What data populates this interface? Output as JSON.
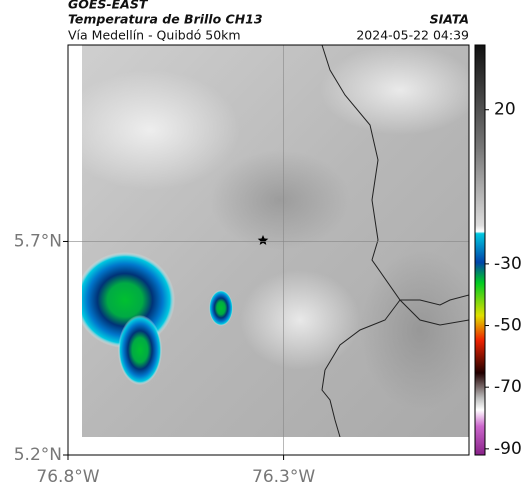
{
  "header": {
    "satellite": "GOES-EAST",
    "product": "Temperatura de Brillo CH13",
    "source": "SIATA",
    "region": "Vía Medellín - Quibdó 50km",
    "datetime": "2024-05-22 04:39"
  },
  "map": {
    "xlim": [
      -76.8,
      -75.87
    ],
    "ylim": [
      5.2,
      6.16
    ],
    "xticks": [
      {
        "value": -76.8,
        "label": "76.8°W"
      },
      {
        "value": -76.3,
        "label": "76.3°W"
      }
    ],
    "yticks": [
      {
        "value": 5.2,
        "label": "5.2°N"
      },
      {
        "value": 5.7,
        "label": "5.7°N"
      }
    ],
    "grid": true
  },
  "colorbar": {
    "lim": [
      -92,
      41
    ],
    "ticks": [
      20,
      -30,
      -50,
      -70,
      -90
    ]
  }
}
